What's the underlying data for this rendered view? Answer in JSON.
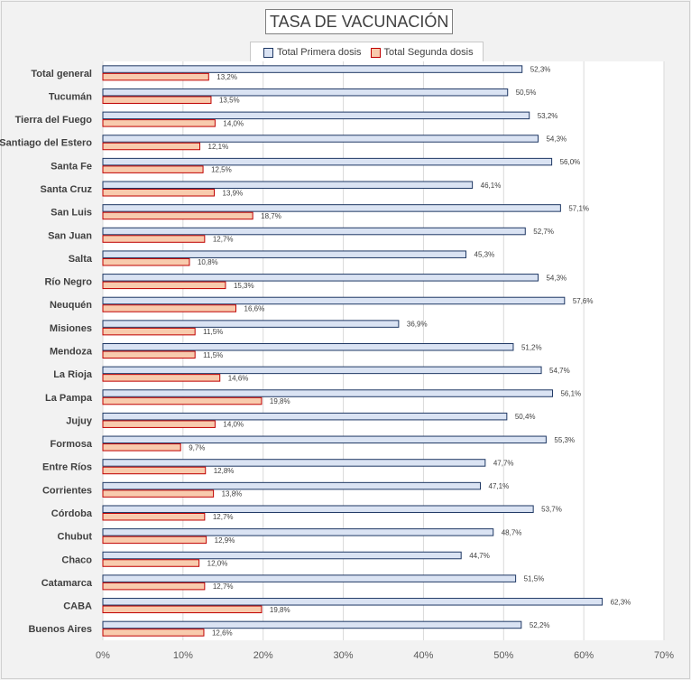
{
  "chart_data": {
    "type": "bar",
    "orientation": "horizontal",
    "title": "TASA DE VACUNACIÓN",
    "categories": [
      "Total general",
      "Tucumán",
      "Tierra del Fuego",
      "Santiago del Estero",
      "Santa Fe",
      "Santa Cruz",
      "San Luis",
      "San Juan",
      "Salta",
      "Río Negro",
      "Neuquén",
      "Misiones",
      "Mendoza",
      "La Rioja",
      "La Pampa",
      "Jujuy",
      "Formosa",
      "Entre Ríos",
      "Corrientes",
      "Córdoba",
      "Chubut",
      "Chaco",
      "Catamarca",
      "CABA",
      "Buenos Aires"
    ],
    "series": [
      {
        "name": "Total Primera dosis",
        "color": "#dae3f3",
        "border": "#1f3864",
        "values": [
          52.3,
          50.5,
          53.2,
          54.3,
          56.0,
          46.1,
          57.1,
          52.7,
          45.3,
          54.3,
          57.6,
          36.9,
          51.2,
          54.7,
          56.1,
          50.4,
          55.3,
          47.7,
          47.1,
          53.7,
          48.7,
          44.7,
          51.5,
          62.3,
          52.2
        ],
        "labels": [
          "52,3%",
          "50,5%",
          "53,2%",
          "54,3%",
          "56,0%",
          "46,1%",
          "57,1%",
          "52,7%",
          "45,3%",
          "54,3%",
          "57,6%",
          "36,9%",
          "51,2%",
          "54,7%",
          "56,1%",
          "50,4%",
          "55,3%",
          "47,7%",
          "47,1%",
          "53,7%",
          "48,7%",
          "44,7%",
          "51,5%",
          "62,3%",
          "52,2%"
        ]
      },
      {
        "name": "Total Segunda dosis",
        "color": "#f8cbad",
        "border": "#c00000",
        "values": [
          13.2,
          13.5,
          14.0,
          12.1,
          12.5,
          13.9,
          18.7,
          12.7,
          10.8,
          15.3,
          16.6,
          11.5,
          11.5,
          14.6,
          19.8,
          14.0,
          9.7,
          12.8,
          13.8,
          12.7,
          12.9,
          12.0,
          12.7,
          19.8,
          12.6
        ],
        "labels": [
          "13,2%",
          "13,5%",
          "14,0%",
          "12,1%",
          "12,5%",
          "13,9%",
          "18,7%",
          "12,7%",
          "10,8%",
          "15,3%",
          "16,6%",
          "11,5%",
          "11,5%",
          "14,6%",
          "19,8%",
          "14,0%",
          "9,7%",
          "12,8%",
          "13,8%",
          "12,7%",
          "12,9%",
          "12,0%",
          "12,7%",
          "19,8%",
          "12,6%"
        ]
      }
    ],
    "xlim": [
      0,
      70
    ],
    "xticks": [
      0,
      10,
      20,
      30,
      40,
      50,
      60,
      70
    ],
    "xtick_labels": [
      "0%",
      "10%",
      "20%",
      "30%",
      "40%",
      "50%",
      "60%",
      "70%"
    ],
    "grid": true,
    "legend_position": "top"
  }
}
